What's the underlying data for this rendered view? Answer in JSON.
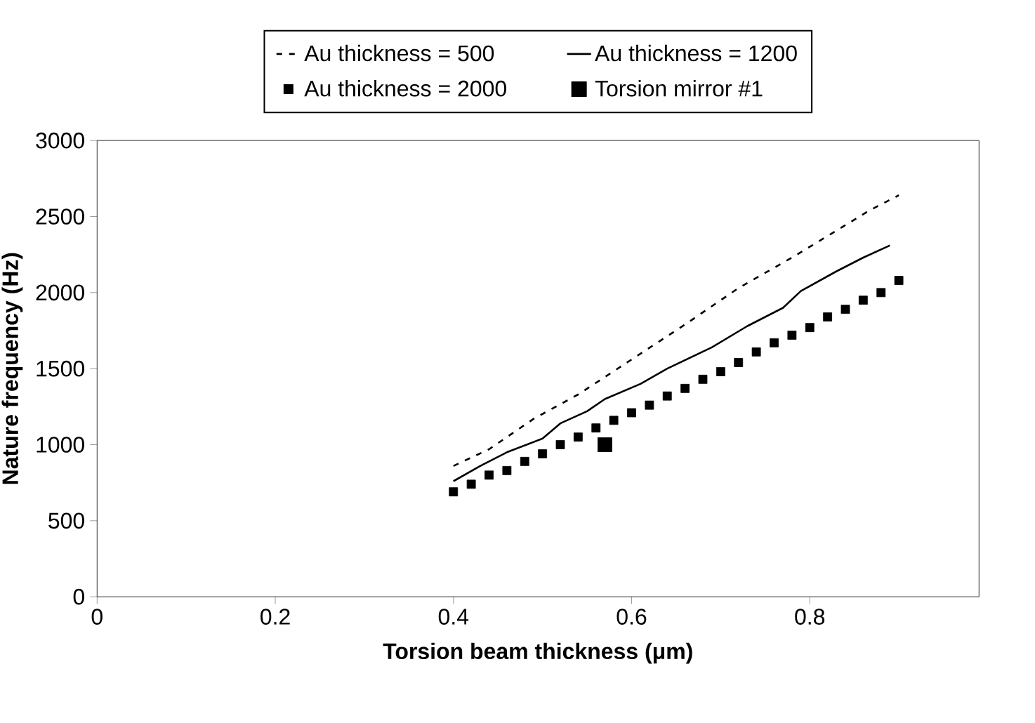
{
  "chart_data": {
    "type": "line",
    "xlabel": "Torsion beam thickness (μm)",
    "ylabel": "Nature frequency (Hz)",
    "xlim": [
      0,
      0.99
    ],
    "xticks": [
      0,
      0.2,
      0.4,
      0.6,
      0.8
    ],
    "ylim": [
      0,
      3000
    ],
    "yticks": [
      0,
      500,
      1000,
      1500,
      2000,
      2500,
      3000
    ],
    "legend": "top",
    "series": [
      {
        "name": "Au thickness = 500",
        "type": "line",
        "line_style": "dashed",
        "marker": "none",
        "color": "#000000",
        "x": [
          0.4,
          0.44,
          0.49,
          0.54,
          0.6,
          0.66,
          0.72,
          0.78,
          0.825,
          0.867,
          0.9
        ],
        "values": [
          860,
          970,
          1170,
          1330,
          1560,
          1790,
          2030,
          2230,
          2390,
          2540,
          2640
        ]
      },
      {
        "name": "Au thickness = 1200",
        "type": "line",
        "line_style": "solid",
        "marker": "none",
        "color": "#000000",
        "x": [
          0.4,
          0.43,
          0.46,
          0.5,
          0.52,
          0.55,
          0.57,
          0.61,
          0.64,
          0.69,
          0.73,
          0.77,
          0.79,
          0.83,
          0.86,
          0.89
        ],
        "values": [
          760,
          860,
          950,
          1040,
          1140,
          1220,
          1300,
          1400,
          1500,
          1640,
          1780,
          1900,
          2010,
          2140,
          2230,
          2310
        ]
      },
      {
        "name": "Au thickness = 2000",
        "type": "scatter",
        "marker": "square",
        "color": "#000000",
        "x": [
          0.4,
          0.42,
          0.44,
          0.46,
          0.48,
          0.5,
          0.52,
          0.54,
          0.56,
          0.58,
          0.6,
          0.62,
          0.64,
          0.66,
          0.68,
          0.7,
          0.72,
          0.74,
          0.76,
          0.78,
          0.8,
          0.82,
          0.84,
          0.86,
          0.88,
          0.9
        ],
        "values": [
          690,
          740,
          800,
          830,
          890,
          940,
          1000,
          1050,
          1110,
          1160,
          1210,
          1260,
          1320,
          1370,
          1430,
          1480,
          1540,
          1610,
          1670,
          1720,
          1770,
          1840,
          1890,
          1950,
          2000,
          2080
        ]
      },
      {
        "name": "Torsion mirror #1",
        "type": "scatter",
        "marker": "square",
        "color": "#000000",
        "x": [
          0.57
        ],
        "values": [
          1000
        ]
      }
    ]
  }
}
